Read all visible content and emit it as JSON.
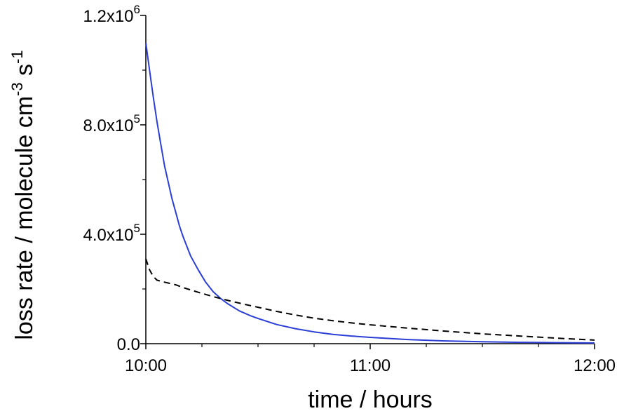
{
  "chart_data": {
    "type": "line",
    "title": "",
    "xlabel": "time / hours",
    "ylabel": "loss rate / molecule cm-3 s-1",
    "ylabel_parts": {
      "main": "loss rate / molecule cm",
      "exp1": "-3",
      "unit2": " s",
      "exp2": "-1"
    },
    "x_ticks": [
      {
        "t": 0,
        "label": "10:00"
      },
      {
        "t": 60,
        "label": "11:00"
      },
      {
        "t": 120,
        "label": "12:00"
      }
    ],
    "x_minor_ticks": [
      15,
      30,
      45,
      75,
      90,
      105
    ],
    "y_ticks": [
      {
        "v": 0,
        "mant": "0.0",
        "exp": ""
      },
      {
        "v": 400000,
        "mant": "4.0x10",
        "exp": "5"
      },
      {
        "v": 800000,
        "mant": "8.0x10",
        "exp": "5"
      },
      {
        "v": 1200000,
        "mant": "1.2x10",
        "exp": "6"
      }
    ],
    "y_minor_ticks": [
      200000,
      600000,
      1000000
    ],
    "xlim": [
      0,
      120
    ],
    "ylim": [
      0,
      1200000
    ],
    "series": [
      {
        "color": "#2b3fd6",
        "style": "solid",
        "points": [
          [
            0,
            1100000
          ],
          [
            1,
            1000000
          ],
          [
            2,
            900000
          ],
          [
            3,
            810000
          ],
          [
            4,
            730000
          ],
          [
            5,
            650000
          ],
          [
            6,
            590000
          ],
          [
            7,
            530000
          ],
          [
            8,
            480000
          ],
          [
            9,
            430000
          ],
          [
            10,
            390000
          ],
          [
            12,
            320000
          ],
          [
            14,
            270000
          ],
          [
            16,
            225000
          ],
          [
            18,
            190000
          ],
          [
            20,
            165000
          ],
          [
            22,
            145000
          ],
          [
            25,
            120000
          ],
          [
            28,
            102000
          ],
          [
            30,
            92000
          ],
          [
            35,
            70000
          ],
          [
            40,
            55000
          ],
          [
            45,
            43000
          ],
          [
            50,
            34000
          ],
          [
            55,
            28000
          ],
          [
            60,
            23000
          ],
          [
            70,
            15000
          ],
          [
            80,
            10000
          ],
          [
            90,
            7000
          ],
          [
            100,
            5000
          ],
          [
            110,
            3500
          ],
          [
            120,
            2500
          ]
        ]
      },
      {
        "color": "#000000",
        "style": "dashed",
        "points": [
          [
            0,
            310000
          ],
          [
            1,
            270000
          ],
          [
            2,
            245000
          ],
          [
            3,
            232000
          ],
          [
            5,
            225000
          ],
          [
            8,
            215000
          ],
          [
            10,
            205000
          ],
          [
            14,
            188000
          ],
          [
            18,
            172000
          ],
          [
            22,
            158000
          ],
          [
            26,
            145000
          ],
          [
            30,
            133000
          ],
          [
            35,
            118000
          ],
          [
            40,
            105000
          ],
          [
            45,
            93000
          ],
          [
            50,
            84000
          ],
          [
            55,
            76000
          ],
          [
            60,
            69000
          ],
          [
            70,
            57000
          ],
          [
            80,
            46000
          ],
          [
            90,
            36000
          ],
          [
            100,
            28000
          ],
          [
            110,
            20000
          ],
          [
            120,
            13000
          ]
        ]
      }
    ]
  }
}
